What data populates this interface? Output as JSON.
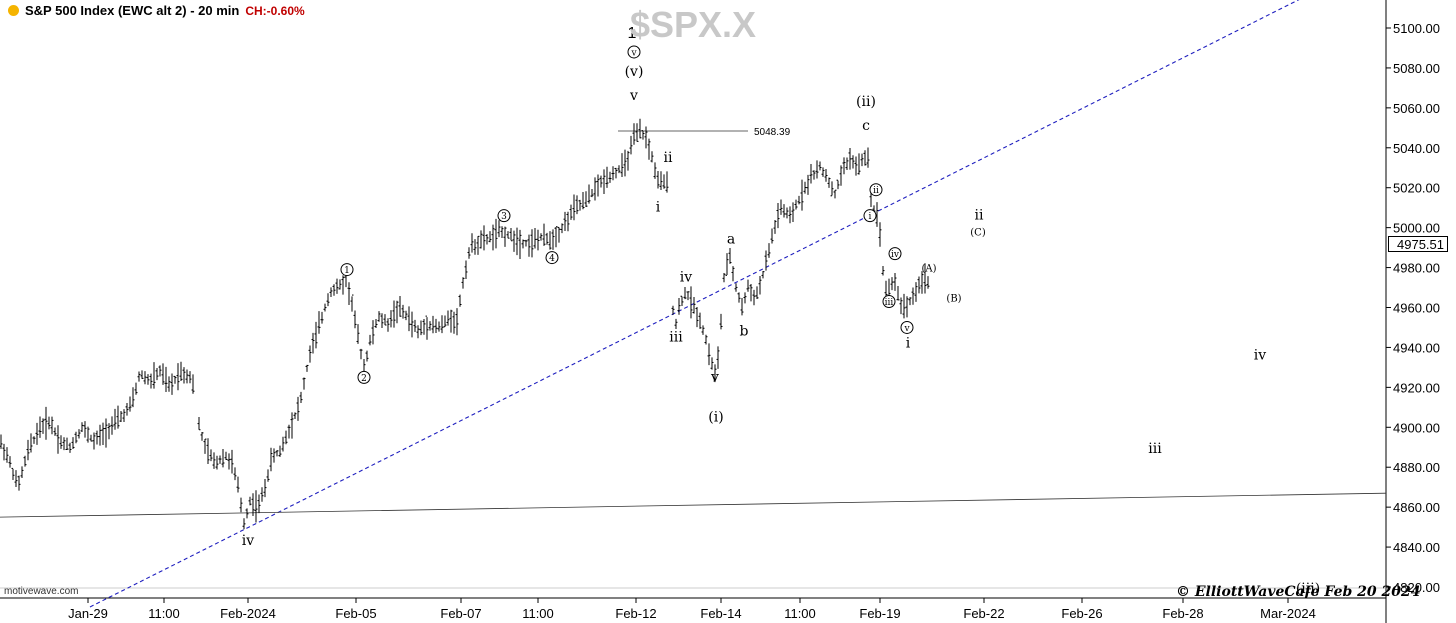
{
  "header": {
    "title": "S&P 500 Index (EWC alt 2) - 20 min",
    "change": "CH:-0.60%",
    "symbol": "$SPX.X"
  },
  "watermark": "motivewave.com",
  "copyright": "© ElliottWaveCafe Feb 20 2024",
  "last_price_label": "4975.51",
  "colors": {
    "accent_dot": "#f5b400",
    "change": "#c00000",
    "trendline": "#1f1fbf",
    "bars": "#000000"
  },
  "chart_data": {
    "type": "ohlc",
    "yaxis": {
      "min": 4810,
      "max": 5115,
      "ticks": [
        "4820.00",
        "4840.00",
        "4860.00",
        "4880.00",
        "4900.00",
        "4920.00",
        "4940.00",
        "4960.00",
        "4980.00",
        "5000.00",
        "5020.00",
        "5040.00",
        "5060.00",
        "5080.00",
        "5100.00"
      ]
    },
    "xaxis": {
      "ticks": [
        "Jan-29",
        "11:00",
        "Feb-2024",
        "Feb-05",
        "Feb-07",
        "11:00",
        "Feb-12",
        "Feb-14",
        "11:00",
        "Feb-19",
        "Feb-22",
        "Feb-26",
        "Feb-28",
        "Mar-2024"
      ]
    },
    "price_path": [
      [
        0,
        4893
      ],
      [
        8,
        4885
      ],
      [
        18,
        4870
      ],
      [
        28,
        4888
      ],
      [
        40,
        4900
      ],
      [
        50,
        4903
      ],
      [
        60,
        4893
      ],
      [
        70,
        4890
      ],
      [
        82,
        4900
      ],
      [
        94,
        4893
      ],
      [
        110,
        4900
      ],
      [
        125,
        4907
      ],
      [
        132,
        4912
      ],
      [
        140,
        4927
      ],
      [
        150,
        4923
      ],
      [
        160,
        4928
      ],
      [
        170,
        4920
      ],
      [
        180,
        4928
      ],
      [
        192,
        4925
      ],
      [
        198,
        4903
      ],
      [
        205,
        4890
      ],
      [
        215,
        4882
      ],
      [
        225,
        4886
      ],
      [
        232,
        4882
      ],
      [
        238,
        4870
      ],
      [
        244,
        4852
      ],
      [
        250,
        4863
      ],
      [
        258,
        4860
      ],
      [
        264,
        4868
      ],
      [
        272,
        4885
      ],
      [
        280,
        4888
      ],
      [
        290,
        4900
      ],
      [
        300,
        4912
      ],
      [
        310,
        4937
      ],
      [
        320,
        4952
      ],
      [
        330,
        4968
      ],
      [
        338,
        4970
      ],
      [
        346,
        4974
      ],
      [
        352,
        4962
      ],
      [
        358,
        4945
      ],
      [
        364,
        4930
      ],
      [
        370,
        4943
      ],
      [
        378,
        4955
      ],
      [
        388,
        4952
      ],
      [
        398,
        4960
      ],
      [
        408,
        4955
      ],
      [
        418,
        4948
      ],
      [
        428,
        4952
      ],
      [
        440,
        4950
      ],
      [
        450,
        4955
      ],
      [
        457,
        4953
      ],
      [
        462,
        4970
      ],
      [
        470,
        4990
      ],
      [
        480,
        4993
      ],
      [
        490,
        4995
      ],
      [
        500,
        4998
      ],
      [
        510,
        4996
      ],
      [
        520,
        4993
      ],
      [
        530,
        4992
      ],
      [
        540,
        4995
      ],
      [
        550,
        4994
      ],
      [
        558,
        4997
      ],
      [
        566,
        5003
      ],
      [
        575,
        5010
      ],
      [
        585,
        5013
      ],
      [
        596,
        5020
      ],
      [
        606,
        5025
      ],
      [
        616,
        5028
      ],
      [
        626,
        5032
      ],
      [
        634,
        5045
      ],
      [
        640,
        5048
      ],
      [
        646,
        5045
      ],
      [
        652,
        5035
      ],
      [
        658,
        5023
      ],
      [
        664,
        5022
      ],
      [
        668,
        5023
      ],
      [
        672,
        4962
      ],
      [
        676,
        4952
      ],
      [
        680,
        4962
      ],
      [
        686,
        4968
      ],
      [
        692,
        4962
      ],
      [
        698,
        4956
      ],
      [
        704,
        4948
      ],
      [
        710,
        4935
      ],
      [
        716,
        4925
      ],
      [
        720,
        4945
      ],
      [
        724,
        4975
      ],
      [
        730,
        4985
      ],
      [
        736,
        4970
      ],
      [
        742,
        4960
      ],
      [
        748,
        4970
      ],
      [
        756,
        4965
      ],
      [
        764,
        4978
      ],
      [
        772,
        4995
      ],
      [
        780,
        5010
      ],
      [
        790,
        5005
      ],
      [
        800,
        5015
      ],
      [
        810,
        5025
      ],
      [
        820,
        5030
      ],
      [
        828,
        5025
      ],
      [
        834,
        5015
      ],
      [
        842,
        5028
      ],
      [
        850,
        5035
      ],
      [
        858,
        5030
      ],
      [
        864,
        5035
      ],
      [
        868,
        5035
      ],
      [
        872,
        5010
      ],
      [
        876,
        5008
      ],
      [
        880,
        4998
      ],
      [
        884,
        4972
      ],
      [
        888,
        4967
      ],
      [
        894,
        4975
      ],
      [
        900,
        4962
      ],
      [
        906,
        4960
      ],
      [
        912,
        4965
      ],
      [
        918,
        4970
      ],
      [
        924,
        4975
      ],
      [
        930,
        4972
      ]
    ],
    "trendlines": [
      {
        "style": "dashed",
        "points": [
          [
            90,
            4810
          ],
          [
            1310,
            5117
          ]
        ]
      },
      {
        "style": "solid",
        "points": [
          [
            0,
            4855
          ],
          [
            1386,
            4867
          ]
        ]
      },
      {
        "style": "solid",
        "label": "5048.39",
        "points": [
          [
            618,
            5048.39
          ],
          [
            748,
            5048.39
          ]
        ]
      }
    ],
    "wave_labels": [
      {
        "t": "1",
        "x": 632,
        "y": 5097,
        "size": 16,
        "font": "sans"
      },
      {
        "t": "v",
        "x": 634,
        "y": 5088,
        "circle": true
      },
      {
        "t": "(v)",
        "x": 634,
        "y": 5078
      },
      {
        "t": "v",
        "x": 634,
        "y": 5066
      },
      {
        "t": "ii",
        "x": 668,
        "y": 5035
      },
      {
        "t": "i",
        "x": 658,
        "y": 5010
      },
      {
        "t": "3",
        "x": 504,
        "y": 5006,
        "circle": true
      },
      {
        "t": "4",
        "x": 552,
        "y": 4985,
        "circle": true
      },
      {
        "t": "1",
        "x": 347,
        "y": 4979,
        "circle": true
      },
      {
        "t": "2",
        "x": 364,
        "y": 4925,
        "circle": true
      },
      {
        "t": "iv",
        "x": 248,
        "y": 4843
      },
      {
        "t": "a",
        "x": 731,
        "y": 4994
      },
      {
        "t": "b",
        "x": 744,
        "y": 4948
      },
      {
        "t": "iv",
        "x": 686,
        "y": 4975
      },
      {
        "t": "iii",
        "x": 676,
        "y": 4945
      },
      {
        "t": "v",
        "x": 715,
        "y": 4925
      },
      {
        "t": "(i)",
        "x": 716,
        "y": 4905
      },
      {
        "t": "(ii)",
        "x": 866,
        "y": 5063
      },
      {
        "t": "c",
        "x": 866,
        "y": 5051
      },
      {
        "t": "ii",
        "x": 876,
        "y": 5019,
        "circle": true
      },
      {
        "t": "i",
        "x": 870,
        "y": 5006,
        "circle": true
      },
      {
        "t": "iv",
        "x": 895,
        "y": 4987,
        "circle": true
      },
      {
        "t": "iii",
        "x": 889,
        "y": 4963,
        "circle": true
      },
      {
        "t": "v",
        "x": 907,
        "y": 4950,
        "circle": true
      },
      {
        "t": "i",
        "x": 908,
        "y": 4942
      },
      {
        "t": "(A)",
        "x": 929,
        "y": 4980,
        "size": 10
      },
      {
        "t": "(B)",
        "x": 954,
        "y": 4965,
        "size": 10
      },
      {
        "t": "ii",
        "x": 979,
        "y": 5006
      },
      {
        "t": "(C)",
        "x": 978,
        "y": 4998,
        "size": 10
      },
      {
        "t": "iv",
        "x": 1260,
        "y": 4936
      },
      {
        "t": "iii",
        "x": 1155,
        "y": 4889
      },
      {
        "t": "(iii)",
        "x": 1308,
        "y": 4819
      }
    ]
  }
}
